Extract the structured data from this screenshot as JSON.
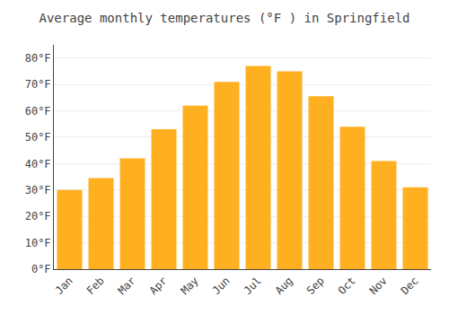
{
  "chart_data": {
    "type": "bar",
    "title": "Average monthly temperatures (°F ) in Springfield",
    "categories": [
      "Jan",
      "Feb",
      "Mar",
      "Apr",
      "May",
      "Jun",
      "Jul",
      "Aug",
      "Sep",
      "Oct",
      "Nov",
      "Dec"
    ],
    "values": [
      30,
      34.5,
      42,
      53,
      62,
      71,
      77,
      75,
      65.5,
      54,
      41,
      31
    ],
    "color": "#FFB020",
    "ylim": [
      0,
      85
    ],
    "yticks": [
      {
        "value": 0,
        "label": "0°F"
      },
      {
        "value": 10,
        "label": "10°F"
      },
      {
        "value": 20,
        "label": "20°F"
      },
      {
        "value": 30,
        "label": "30°F"
      },
      {
        "value": 40,
        "label": "40°F"
      },
      {
        "value": 50,
        "label": "50°F"
      },
      {
        "value": 60,
        "label": "60°F"
      },
      {
        "value": 70,
        "label": "70°F"
      },
      {
        "value": 80,
        "label": "80°F"
      }
    ],
    "grid": true
  }
}
